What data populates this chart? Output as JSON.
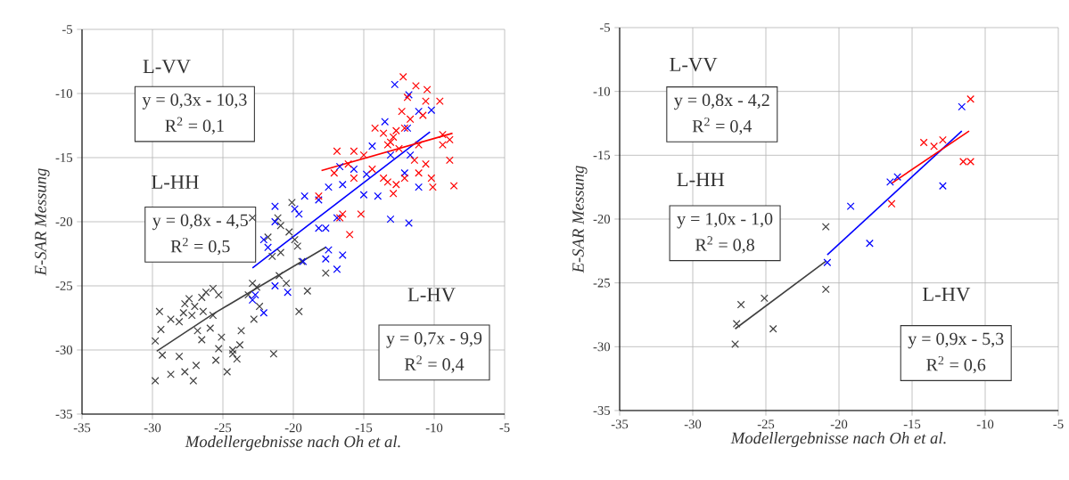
{
  "chart_data": [
    {
      "type": "scatter",
      "xlabel": "Modellergebnisse nach Oh et al.",
      "ylabel": "E-SAR Messung",
      "xlim": [
        -35,
        -5
      ],
      "ylim": [
        -35,
        -5
      ],
      "xticks": [
        -35,
        -30,
        -25,
        -20,
        -15,
        -10,
        -5
      ],
      "yticks": [
        -35,
        -30,
        -25,
        -20,
        -15,
        -10,
        -5
      ],
      "grid": true,
      "marker": "cross",
      "annotations": [
        "L-VV",
        "y = 0,3x - 10,3",
        "R$^{2}$ = 0,1",
        "L-HH",
        "y = 0,8x - 4,5",
        "R$^{2}$ = 0,5",
        "L-HV",
        "y = 0,7x - 9,9",
        "R$^{2}$ = 0,4"
      ],
      "series": [
        {
          "color": "#404040",
          "x": [
            -22.9,
            -21.8,
            -20.9,
            -20.3,
            -19.9,
            -19.7,
            -20.9,
            -21.5,
            -17.7,
            -19.4,
            -21.0,
            -20.5,
            -19.0,
            -19.6,
            -21.4,
            -22.6,
            -22.9,
            -23.2,
            -22.4,
            -22.8,
            -23.7,
            -23.8,
            -24.3,
            -24.3,
            -24.7,
            -25.5,
            -25.3,
            -25.1,
            -25.7,
            -25.3,
            -25.7,
            -26.2,
            -26.5,
            -27.0,
            -27.4,
            -27.7,
            -27.8,
            -27.2,
            -26.4,
            -25.9,
            -26.8,
            -26.5,
            -28.1,
            -28.7,
            -29.5,
            -29.4,
            -29.8,
            -29.3,
            -28.1,
            -26.9,
            -27.7,
            -27.1,
            -28.7,
            -29.8,
            -24.0,
            -20.1,
            -21.1
          ],
          "values": [
            -19.7,
            -21.2,
            -20.3,
            -20.8,
            -21.4,
            -21.9,
            -22.4,
            -22.7,
            -24.0,
            -23.1,
            -24.2,
            -24.8,
            -25.4,
            -27.0,
            -30.3,
            -25.1,
            -24.8,
            -25.7,
            -26.6,
            -27.6,
            -28.5,
            -29.6,
            -30.0,
            -30.3,
            -31.7,
            -30.8,
            -29.9,
            -29.0,
            -27.3,
            -25.7,
            -25.2,
            -25.5,
            -25.9,
            -26.6,
            -26.0,
            -26.4,
            -27.1,
            -27.3,
            -27.0,
            -28.3,
            -28.5,
            -29.2,
            -27.8,
            -27.6,
            -27.0,
            -28.4,
            -29.3,
            -30.4,
            -30.5,
            -31.2,
            -31.7,
            -32.4,
            -31.9,
            -32.4,
            -30.7,
            -18.5,
            -19.7
          ]
        },
        {
          "color": "#0000ff",
          "x": [
            -22.1,
            -21.8,
            -22.9,
            -22.1,
            -21.3,
            -20.4,
            -19.3,
            -17.7,
            -16.9,
            -16.5,
            -17.5,
            -18.2,
            -19.6,
            -21.3,
            -22.7,
            -12.8,
            -11.8,
            -10.2,
            -11.1,
            -13.5,
            -11.9,
            -14.4,
            -16.7,
            -15.7,
            -14.8,
            -17.5,
            -16.5,
            -18.2,
            -19.2,
            -19.9,
            -21.3,
            -14.0,
            -13.1,
            -11.8,
            -12.1,
            -11.1,
            -15.0,
            -16.9,
            -17.7,
            -13.1,
            -11.7
          ],
          "values": [
            -21.4,
            -22.0,
            -26.1,
            -27.1,
            -25.0,
            -25.5,
            -23.1,
            -22.9,
            -23.7,
            -22.6,
            -22.2,
            -20.5,
            -19.4,
            -20.0,
            -25.7,
            -9.3,
            -10.1,
            -11.3,
            -11.4,
            -12.2,
            -12.7,
            -14.1,
            -15.7,
            -15.9,
            -16.3,
            -17.3,
            -17.1,
            -18.3,
            -18.0,
            -19.0,
            -18.8,
            -18.0,
            -19.8,
            -20.1,
            -16.2,
            -17.3,
            -17.9,
            -19.7,
            -20.5,
            -14.8,
            -14.8
          ]
        },
        {
          "color": "#ff0000",
          "x": [
            -12.2,
            -11.3,
            -10.5,
            -9.6,
            -10.6,
            -11.9,
            -10.8,
            -12.3,
            -11.7,
            -12.1,
            -12.7,
            -13.6,
            -14.2,
            -13.1,
            -12.5,
            -9.4,
            -8.9,
            -8.9,
            -9.4,
            -11.1,
            -11.4,
            -10.6,
            -11.1,
            -10.2,
            -10.1,
            -8.6,
            -12.1,
            -12.7,
            -13.3,
            -12.9,
            -14.4,
            -15.0,
            -15.7,
            -16.9,
            -16.1,
            -15.7,
            -17.1,
            -18.2,
            -16.5,
            -15.2,
            -13.6,
            -13.3,
            -12.9,
            -16.0,
            -16.7
          ],
          "values": [
            -8.7,
            -9.4,
            -9.7,
            -10.6,
            -10.6,
            -10.3,
            -11.7,
            -11.4,
            -12.0,
            -12.7,
            -12.9,
            -13.1,
            -12.7,
            -13.8,
            -14.3,
            -13.2,
            -13.6,
            -15.2,
            -14.0,
            -14.0,
            -15.2,
            -15.5,
            -16.2,
            -16.6,
            -17.3,
            -17.2,
            -16.6,
            -17.1,
            -16.9,
            -17.8,
            -15.9,
            -14.8,
            -14.5,
            -14.5,
            -15.5,
            -16.6,
            -16.2,
            -18.0,
            -19.4,
            -19.4,
            -16.6,
            -14.0,
            -13.4,
            -21.0,
            -19.7
          ]
        },
        {
          "type": "line",
          "marker": "none",
          "color": "#404040",
          "x": [
            -29.7,
            -25.7,
            -21.1,
            -17.7
          ],
          "values": [
            -30.1,
            -27.2,
            -24.2,
            -22.0
          ]
        },
        {
          "type": "line",
          "marker": "none",
          "color": "#0000ff",
          "x": [
            -22.9,
            -10.3
          ],
          "values": [
            -23.6,
            -13.0
          ]
        },
        {
          "type": "line",
          "marker": "none",
          "color": "#ff0000",
          "x": [
            -18.0,
            -8.7
          ],
          "values": [
            -16.0,
            -13.1
          ]
        }
      ]
    },
    {
      "type": "scatter",
      "xlabel": "Modellergebnisse nach Oh et al.",
      "ylabel": "E-SAR Messung",
      "xlim": [
        -35,
        -5
      ],
      "ylim": [
        -35,
        -5
      ],
      "xticks": [
        -35,
        -30,
        -25,
        -20,
        -15,
        -10,
        -5
      ],
      "yticks": [
        -35,
        -30,
        -25,
        -20,
        -15,
        -10,
        -5
      ],
      "grid": true,
      "marker": "cross",
      "annotations": [
        "L-VV",
        "y = 0,8x - 4,2",
        "R$^{2}$ = 0,4",
        "L-HH",
        "y = 1,0x - 1,0",
        "R$^{2}$ = 0,8",
        "L-HV",
        "y = 0,9x - 5,3",
        "R$^{2}$ = 0,6"
      ],
      "series": [
        {
          "color": "#404040",
          "x": [
            -27.1,
            -27.0,
            -26.7,
            -25.1,
            -24.5,
            -20.9,
            -20.9
          ],
          "values": [
            -29.8,
            -28.2,
            -26.7,
            -26.2,
            -28.6,
            -20.6,
            -25.5
          ]
        },
        {
          "color": "#0000ff",
          "x": [
            -20.8,
            -19.2,
            -17.9,
            -16.5,
            -16.0,
            -12.9,
            -11.6
          ],
          "values": [
            -23.4,
            -19.0,
            -21.9,
            -17.1,
            -16.7,
            -17.4,
            -11.2
          ]
        },
        {
          "color": "#ff0000",
          "x": [
            -11.0,
            -14.2,
            -13.5,
            -12.9,
            -11.5,
            -11.0,
            -16.4
          ],
          "values": [
            -10.6,
            -14.0,
            -14.3,
            -13.8,
            -15.5,
            -15.5,
            -18.8
          ]
        },
        {
          "type": "line",
          "marker": "none",
          "color": "#404040",
          "x": [
            -27.1,
            -20.9
          ],
          "values": [
            -28.6,
            -23.3
          ]
        },
        {
          "type": "line",
          "marker": "none",
          "color": "#0000ff",
          "x": [
            -20.8,
            -11.6
          ],
          "values": [
            -22.8,
            -13.1
          ]
        },
        {
          "type": "line",
          "marker": "none",
          "color": "#ff0000",
          "x": [
            -16.4,
            -11.1
          ],
          "values": [
            -17.2,
            -13.1
          ]
        }
      ]
    }
  ]
}
